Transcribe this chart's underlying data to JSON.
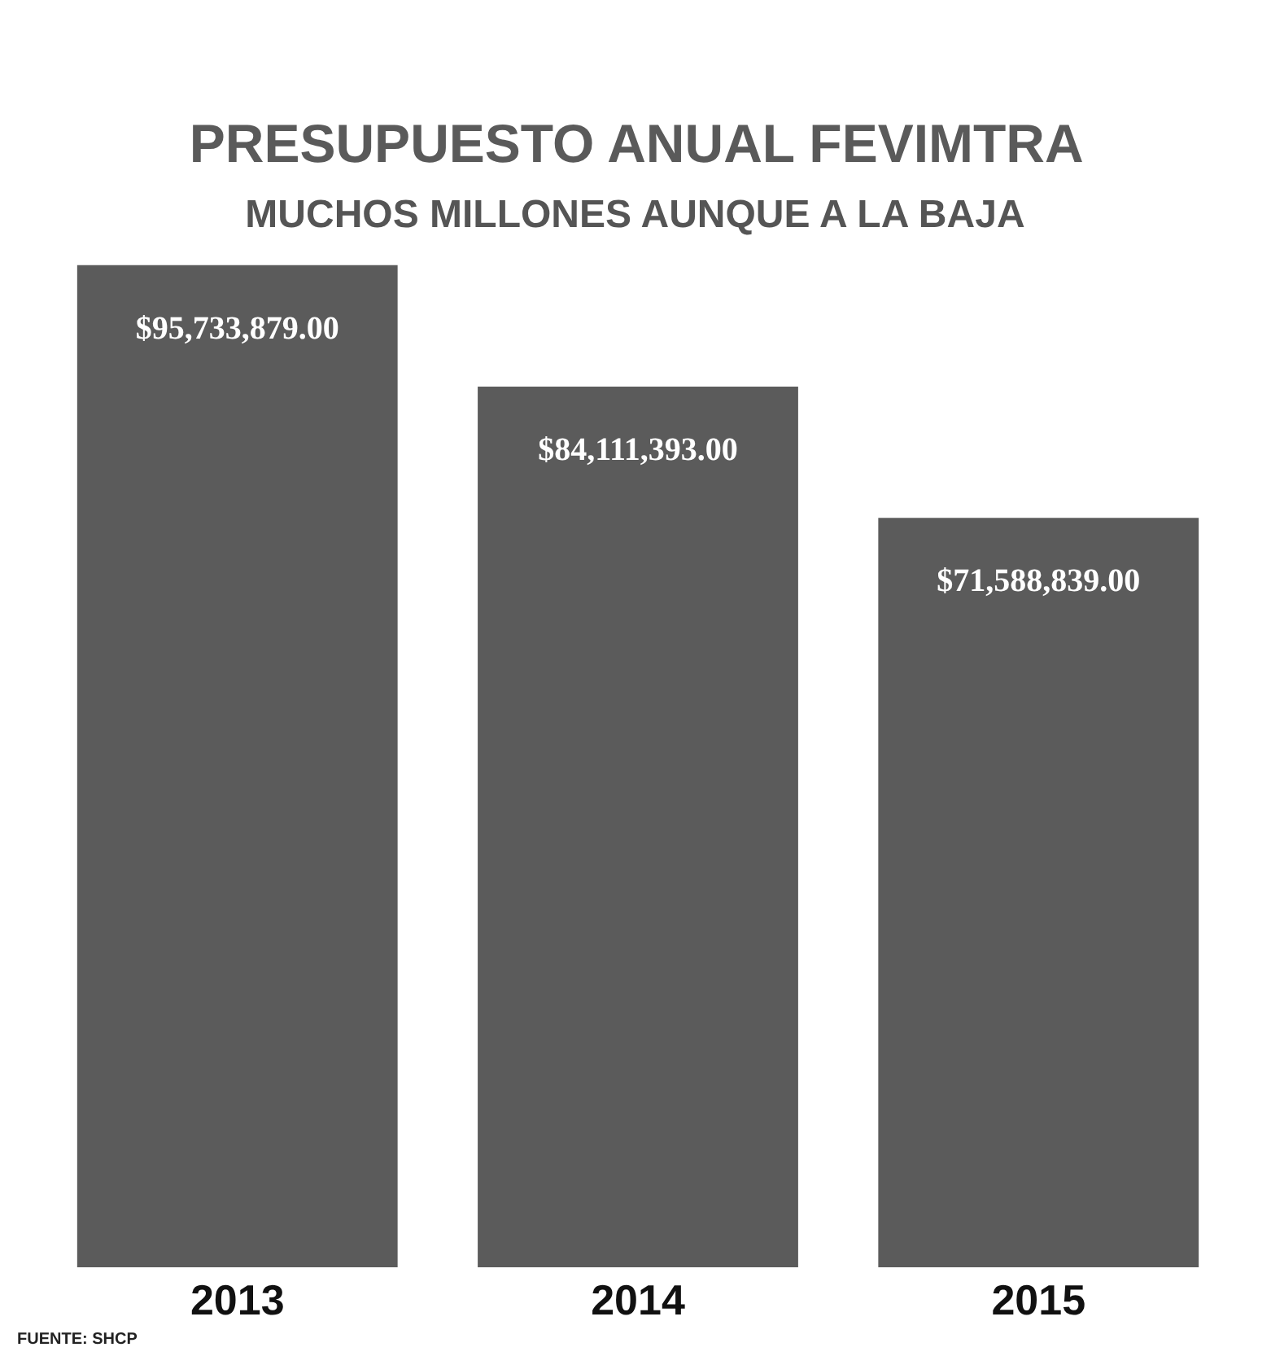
{
  "chart_data": {
    "type": "bar",
    "title": "PRESUPUESTO ANUAL FEVIMTRA",
    "subtitle": "MUCHOS MILLONES AUNQUE A LA BAJA",
    "categories": [
      "2013",
      "2014",
      "2015"
    ],
    "values": [
      95733879.0,
      84111393.0,
      71588839.0
    ],
    "value_labels": [
      "$95,733,879.00",
      "$84,111,393.00",
      "$71,588,839.00"
    ],
    "color": "#5b5b5b",
    "annotations": [
      "FUENTE: SHCP"
    ]
  }
}
